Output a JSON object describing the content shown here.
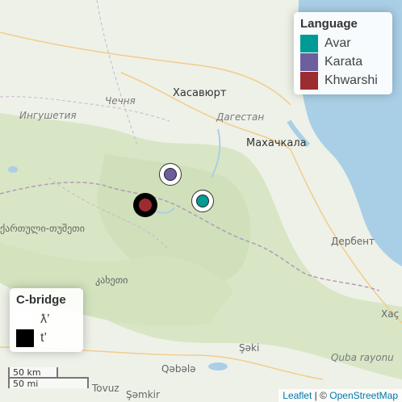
{
  "map_labels": {
    "khasavyurt": "Хасавюрт",
    "chechnya": "Чечня",
    "ingushetia": "Ингушетия",
    "dagestan": "Дагестан",
    "makhachkala": "Махачкала",
    "georgia": "ქართული-თუშეთი",
    "kakheti": "კახეთი",
    "derbent": "Дербент",
    "sheki": "Şəki",
    "qabala": "Qəbələ",
    "quba": "Quba rayonu",
    "khachmaz": "Xaç",
    "tovuz": "Tovuz",
    "shamkir": "Şəmkir"
  },
  "legend_language": {
    "title": "Language",
    "items": [
      {
        "label": "Avar",
        "color": "#009b95"
      },
      {
        "label": "Karata",
        "color": "#6b5f9e"
      },
      {
        "label": "Khwarshi",
        "color": "#9b2d30"
      }
    ]
  },
  "legend_cbridge": {
    "title": "C-bridge",
    "items": [
      {
        "label": "ƛ’",
        "color": "#ffffff"
      },
      {
        "label": "t’",
        "color": "#000000"
      }
    ]
  },
  "markers": [
    {
      "language": "Karata",
      "fill": "#6b5f9e",
      "outline": "#ffffff"
    },
    {
      "language": "Avar",
      "fill": "#009b95",
      "outline": "#ffffff"
    },
    {
      "language": "Khwarshi",
      "fill": "#9b2d30",
      "outline": "#000000"
    }
  ],
  "scale": {
    "metric": "50 km",
    "imperial": "50 mi"
  },
  "attribution": {
    "leaflet": "Leaflet",
    "separator": " | © ",
    "osm": "OpenStreetMap"
  }
}
